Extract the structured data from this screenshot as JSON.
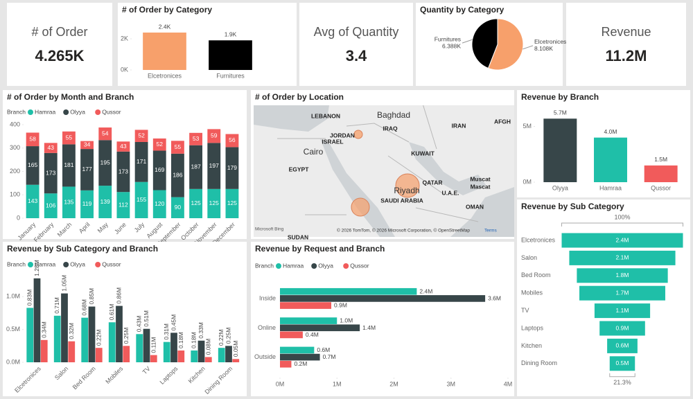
{
  "cards": [
    {
      "label": "# of Order",
      "value": "4.265K"
    },
    {
      "label": "Avg of Quantity",
      "value": "3.4"
    },
    {
      "label": "Revenue",
      "value": "11.2M"
    }
  ],
  "map": {
    "title": "# of Order by Location",
    "labels": [
      "LEBANON",
      "Baghdad",
      "IRAQ",
      "IRAN",
      "AFGH",
      "JORDAN",
      "ISRAEL",
      "Cairo",
      "KUWAIT",
      "EGYPT",
      "QATAR",
      "Muscat",
      "Mascat",
      "Riyadh",
      "U.A.E.",
      "SAUDI ARABIA",
      "OMAN",
      "SUDAN"
    ],
    "attribution": "© 2026 TomTom, © 2026 Microsoft Corporation, © OpenStreetMap",
    "terms": "Terms",
    "provider": "Microsoft Bing"
  },
  "chart_data": [
    {
      "type": "bar",
      "title": "# of Order by Category",
      "categories": [
        "Elcetronices",
        "Furnitures"
      ],
      "values": [
        2400,
        1900
      ],
      "value_labels": [
        "2.4K",
        "1.9K"
      ],
      "colors": [
        "#f7a06b",
        "#000000"
      ],
      "ylim": [
        0,
        2800
      ],
      "yticks": [
        {
          "value": 0,
          "label": "0K"
        },
        {
          "value": 2000,
          "label": "2K"
        }
      ],
      "grid": false
    },
    {
      "type": "pie",
      "title": "Quantity by Category",
      "categories": [
        "Elcetronices",
        "Furnitures"
      ],
      "values": [
        8108,
        6388
      ],
      "value_labels": [
        "8.108K",
        "6.388K"
      ],
      "colors": [
        "#f7a06b",
        "#000000"
      ]
    },
    {
      "type": "stacked_bar",
      "title": "# of Order by Month and Branch",
      "legend_title": "Branch",
      "categories": [
        "January",
        "February",
        "March",
        "April",
        "May",
        "June",
        "July",
        "August",
        "September",
        "October",
        "November",
        "December"
      ],
      "series": [
        {
          "name": "Hamraa",
          "color": "#1fbfa8",
          "values": [
            143,
            106,
            135,
            119,
            139,
            112,
            155,
            120,
            90,
            125,
            125,
            125
          ]
        },
        {
          "name": "Olyya",
          "color": "#374649",
          "values": [
            165,
            173,
            181,
            177,
            195,
            173,
            171,
            169,
            186,
            187,
            197,
            179
          ]
        },
        {
          "name": "Qussor",
          "color": "#f15b5b",
          "values": [
            58,
            43,
            55,
            34,
            54,
            43,
            52,
            52,
            55,
            53,
            59,
            56
          ]
        }
      ],
      "ylim": [
        0,
        400
      ],
      "yticks": [
        0,
        100,
        200,
        300,
        400
      ],
      "grid": false
    },
    {
      "type": "bar",
      "title": "Revenue by Branch",
      "categories": [
        "Olyya",
        "Hamraa",
        "Qussor"
      ],
      "values": [
        5700000,
        4000000,
        1500000
      ],
      "value_labels": [
        "5.7M",
        "4.0M",
        "1.5M"
      ],
      "colors": [
        "#374649",
        "#1fbfa8",
        "#f15b5b"
      ],
      "ylim": [
        0,
        6400000
      ],
      "yticks": [
        {
          "value": 0,
          "label": "0M"
        },
        {
          "value": 5000000,
          "label": "5M"
        }
      ],
      "grid": false
    },
    {
      "type": "funnel",
      "title": "Revenue by Sub Category",
      "categories": [
        "Elcetronices",
        "Salon",
        "Bed Room",
        "Mobiles",
        "TV",
        "Laptops",
        "Kitchen",
        "Dining Room"
      ],
      "values": [
        2400000,
        2100000,
        1800000,
        1700000,
        1100000,
        900000,
        600000,
        500000
      ],
      "value_labels": [
        "2.4M",
        "2.1M",
        "1.8M",
        "1.7M",
        "1.1M",
        "0.9M",
        "0.6M",
        "0.5M"
      ],
      "color": "#1fbfa8",
      "top_label": "100%",
      "bottom_label": "21.3%"
    },
    {
      "type": "grouped_bar",
      "title": "Revenue by Sub Category and Branch",
      "legend_title": "Branch",
      "categories": [
        "Elcetronices",
        "Salon",
        "Bed Room",
        "Mobiles",
        "TV",
        "Laptops",
        "Kitchen",
        "Dining Room"
      ],
      "series": [
        {
          "name": "Hamraa",
          "color": "#1fbfa8",
          "values": [
            830000,
            710000,
            680000,
            610000,
            430000,
            310000,
            180000,
            220000
          ],
          "value_labels": [
            "0.83M",
            "0.71M",
            "0.68M",
            "0.61M",
            "0.43M",
            "0.31M",
            "0.18M",
            "0.22M"
          ]
        },
        {
          "name": "Olyya",
          "color": "#374649",
          "values": [
            1280000,
            1050000,
            850000,
            860000,
            510000,
            450000,
            330000,
            250000
          ],
          "value_labels": [
            "1.28M",
            "1.05M",
            "0.85M",
            "0.86M",
            "0.51M",
            "0.45M",
            "0.33M",
            "0.25M"
          ]
        },
        {
          "name": "Qussor",
          "color": "#f15b5b",
          "values": [
            340000,
            320000,
            220000,
            250000,
            110000,
            180000,
            80000,
            50000
          ],
          "value_labels": [
            "0.34M",
            "0.32M",
            "0.22M",
            "0.25M",
            "0.11M",
            "0.18M",
            "0.08M",
            "0.05M"
          ]
        }
      ],
      "ylim": [
        0,
        1500000
      ],
      "yticks": [
        {
          "value": 0,
          "label": "0.0M"
        },
        {
          "value": 500000,
          "label": "0.5M"
        },
        {
          "value": 1000000,
          "label": "1.0M"
        }
      ],
      "grid": false
    },
    {
      "type": "hbar",
      "title": "Revenue by Request and Branch",
      "legend_title": "Branch",
      "categories": [
        "Inside",
        "Online",
        "Outside"
      ],
      "series": [
        {
          "name": "Hamraa",
          "color": "#1fbfa8",
          "values": [
            2400000,
            1000000,
            600000
          ],
          "value_labels": [
            "2.4M",
            "1.0M",
            "0.6M"
          ]
        },
        {
          "name": "Olyya",
          "color": "#374649",
          "values": [
            3600000,
            1400000,
            700000
          ],
          "value_labels": [
            "3.6M",
            "1.4M",
            "0.7M"
          ]
        },
        {
          "name": "Qussor",
          "color": "#f15b5b",
          "values": [
            900000,
            400000,
            200000
          ],
          "value_labels": [
            "0.9M",
            "0.4M",
            "0.2M"
          ]
        }
      ],
      "xlim": [
        0,
        4000000
      ],
      "xticks": [
        {
          "value": 0,
          "label": "0M"
        },
        {
          "value": 1000000,
          "label": "1M"
        },
        {
          "value": 2000000,
          "label": "2M"
        },
        {
          "value": 3000000,
          "label": "3M"
        },
        {
          "value": 4000000,
          "label": "4M"
        }
      ],
      "grid": false
    }
  ]
}
